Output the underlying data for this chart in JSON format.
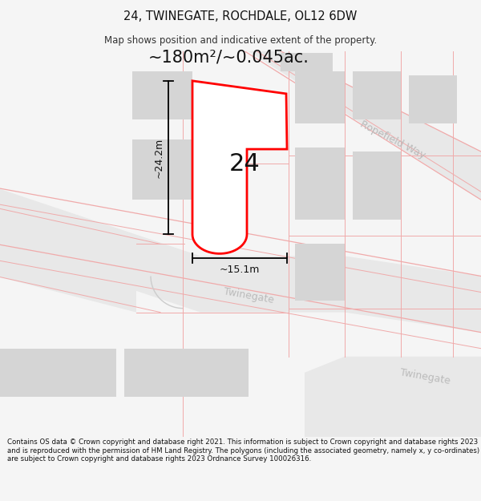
{
  "title": "24, TWINEGATE, ROCHDALE, OL12 6DW",
  "subtitle": "Map shows position and indicative extent of the property.",
  "area_text": "~180m²/~0.045ac.",
  "dim_height": "~24.2m",
  "dim_width": "~15.1m",
  "label": "24",
  "footer": "Contains OS data © Crown copyright and database right 2021. This information is subject to Crown copyright and database rights 2023 and is reproduced with the permission of HM Land Registry. The polygons (including the associated geometry, namely x, y co-ordinates) are subject to Crown copyright and database rights 2023 Ordnance Survey 100026316.",
  "bg_color": "#f5f5f5",
  "map_bg": "#ffffff",
  "bld_color": "#d5d5d5",
  "road_edge": "#cccccc",
  "plot_stroke": "#ff0000",
  "pink_line": "#f0aaaa",
  "street_label_color": "#aaaaaa",
  "ropefield_label": "#bbbbbb",
  "twinegate_label": "#bbbbbb"
}
